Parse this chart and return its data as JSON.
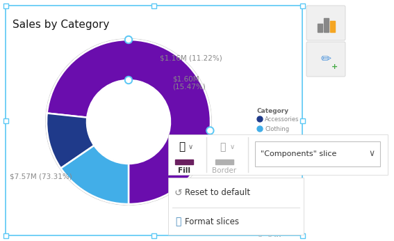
{
  "title": "Sales by Category",
  "slices": [
    {
      "label": "Components",
      "value": 73.31,
      "amount": "$7.57M (73.31%)",
      "color": "#6a0dad"
    },
    {
      "label": "Accessories",
      "value": 11.22,
      "amount": "$1.16M (11.22%)",
      "color": "#1f3a8a"
    },
    {
      "label": "Clothing",
      "value": 15.47,
      "amount": "$1.60M\n(15.47%)",
      "color": "#42aee8"
    }
  ],
  "bg_color": "#ffffff",
  "border_color": "#5bc8f5",
  "title_color": "#1a1a1a",
  "title_fontsize": 11,
  "legend_title": "Category",
  "legend_items": [
    {
      "label": "Accessories",
      "color": "#1f3a8a"
    },
    {
      "label": "Clothing",
      "color": "#42aee8"
    }
  ],
  "label_color": "#888888",
  "panel_bg": "#ffffff",
  "panel_border": "#d0d0d0",
  "fill_swatch_color": "#6b2060",
  "border_swatch_color": "#b0b0b0",
  "dropdown_text": "\"Components\" slice",
  "reset_text": "Reset to default",
  "format_text": "Format slices",
  "fill_text": "Fill",
  "border_text": "Border"
}
